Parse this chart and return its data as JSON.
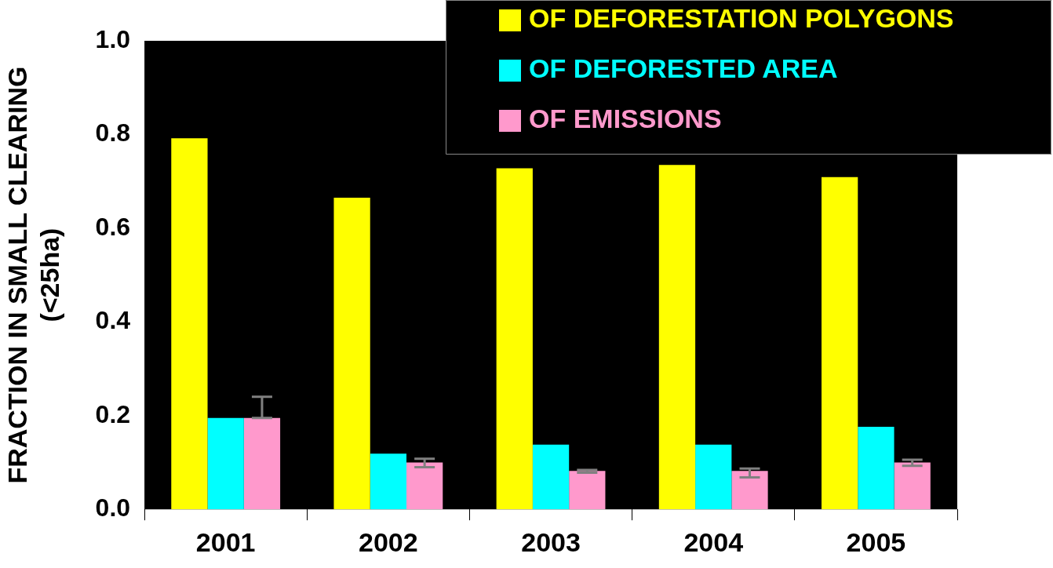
{
  "chart_data": {
    "type": "bar",
    "ylabel": "FRACTION IN SMALL CLEARING (<25ha)",
    "categories": [
      "2001",
      "2002",
      "2003",
      "2004",
      "2005"
    ],
    "series": [
      {
        "name": "OF DEFORESTATION POLYGONS",
        "color": "#ffff00",
        "values": [
          0.792,
          0.665,
          0.728,
          0.735,
          0.709
        ]
      },
      {
        "name": "OF DEFORESTED AREA",
        "color": "#00ffff",
        "values": [
          0.195,
          0.119,
          0.138,
          0.138,
          0.176
        ]
      },
      {
        "name": "OF EMISSIONS",
        "color": "#ff99cc",
        "values": [
          0.195,
          0.1,
          0.082,
          0.082,
          0.1
        ],
        "errors": [
          [
            0.195,
            0.24
          ],
          [
            0.09,
            0.108
          ],
          [
            0.078,
            0.084
          ],
          [
            0.068,
            0.087
          ],
          [
            0.093,
            0.106
          ]
        ]
      }
    ],
    "ylim": [
      0,
      1
    ],
    "yticks": [
      {
        "value": 0,
        "label": "0.0"
      },
      {
        "value": 0.2,
        "label": "0.2"
      },
      {
        "value": 0.4,
        "label": "0.4"
      },
      {
        "value": 0.6,
        "label": "0.6"
      },
      {
        "value": 0.8,
        "label": "0.8"
      },
      {
        "value": 1,
        "label": "1.0"
      }
    ],
    "grid": false,
    "legend": "top right"
  }
}
